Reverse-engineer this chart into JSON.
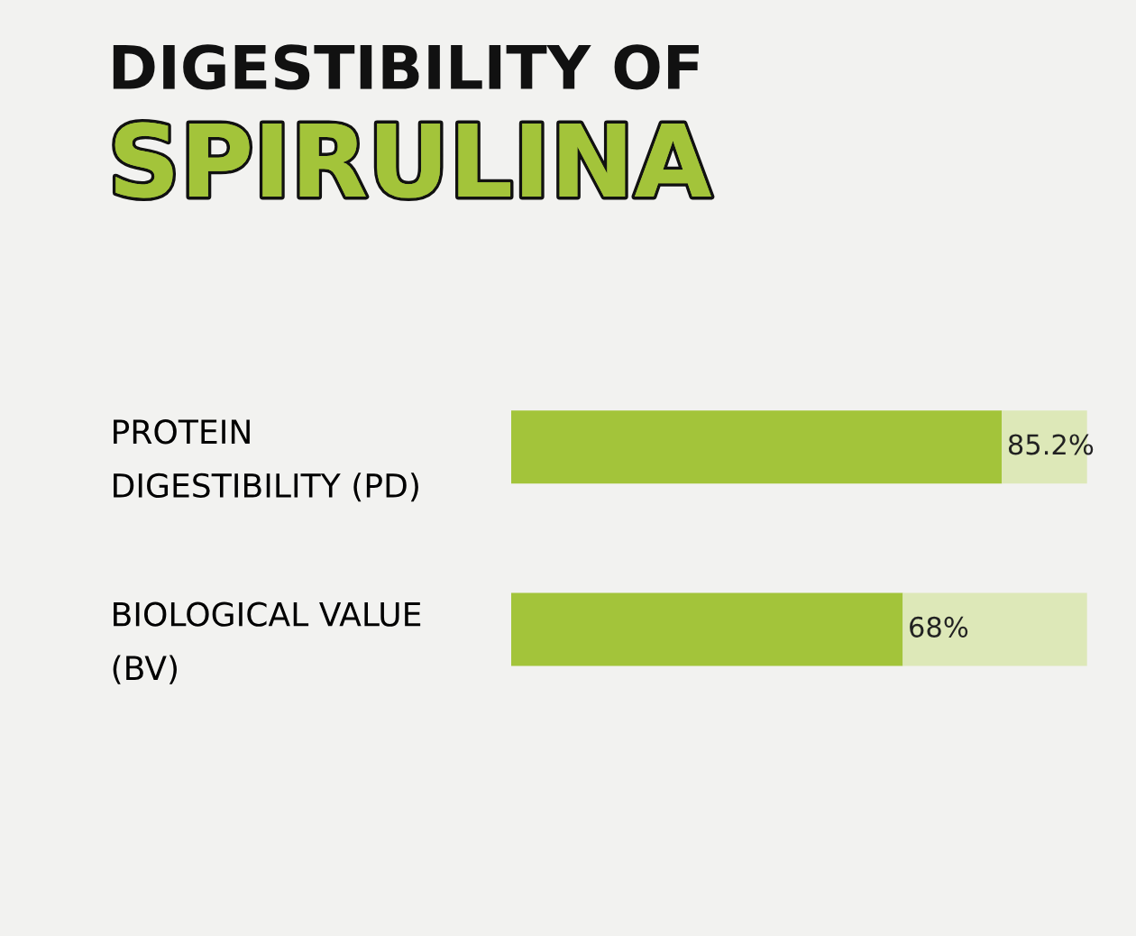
{
  "chart_data": {
    "type": "bar",
    "orientation": "horizontal",
    "stacked": true,
    "title": "DIGESTIBILITY OF",
    "subtitle": "SPIRULINA",
    "categories": [
      "PROTEIN\nDIGESTIBILITY (PD)",
      "BIOLOGICAL VALUE\n(BV)"
    ],
    "series": [
      {
        "color": "#a3c43a",
        "values": [
          85.2,
          68
        ],
        "value_labels": [
          "85.2%",
          "68%"
        ]
      },
      {
        "color": "#dde8b8",
        "values": [
          14.8,
          32
        ]
      }
    ],
    "xlim": [
      0,
      100
    ],
    "tick_labels": "y",
    "grid": false,
    "legend": false
  }
}
